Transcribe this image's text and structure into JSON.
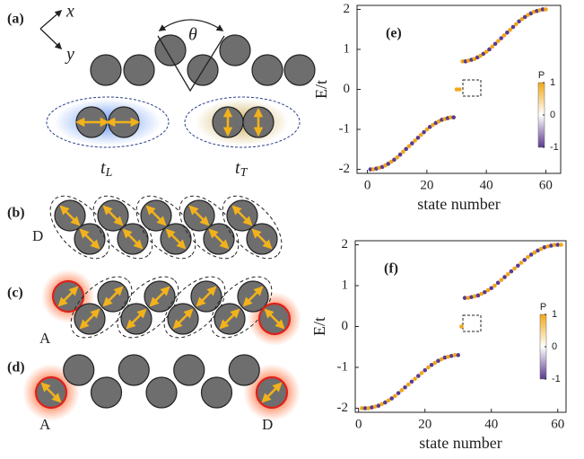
{
  "diagram": {
    "panel_labels": [
      "(a)",
      "(b)",
      "(c)",
      "(d)"
    ],
    "axis_x": "x",
    "axis_y": "y",
    "angle": "θ",
    "t_L": {
      "symbol": "t",
      "subscript": "L"
    },
    "t_T": {
      "symbol": "t",
      "subscript": "T"
    },
    "b_end": "D",
    "c_end": "A",
    "d_ends": [
      "A",
      "D"
    ]
  },
  "chart_data": [
    {
      "type": "scatter",
      "title": "(e)",
      "x_label": "state number",
      "y_label": "E/t",
      "x": [
        1,
        2,
        3,
        4,
        5,
        6,
        7,
        8,
        9,
        10,
        11,
        12,
        13,
        14,
        15,
        16,
        17,
        18,
        19,
        20,
        21,
        22,
        23,
        24,
        25,
        26,
        27,
        28,
        29,
        30,
        31,
        32,
        33,
        34,
        35,
        36,
        37,
        38,
        39,
        40,
        41,
        42,
        43,
        44,
        45,
        46,
        47,
        48,
        49,
        50,
        51,
        52,
        53,
        54,
        55,
        56,
        57,
        58,
        59,
        60
      ],
      "values": [
        -2,
        -2,
        -1.98,
        -1.96,
        -1.94,
        -1.9,
        -1.86,
        -1.81,
        -1.76,
        -1.7,
        -1.63,
        -1.56,
        -1.49,
        -1.42,
        -1.35,
        -1.28,
        -1.21,
        -1.14,
        -1.07,
        -1,
        -0.94,
        -0.89,
        -0.84,
        -0.8,
        -0.76,
        -0.74,
        -0.72,
        -0.7,
        -0.7,
        0,
        0,
        0.7,
        0.7,
        0.72,
        0.74,
        0.76,
        0.8,
        0.84,
        0.89,
        0.94,
        1,
        1.07,
        1.14,
        1.21,
        1.28,
        1.35,
        1.42,
        1.49,
        1.56,
        1.63,
        1.7,
        1.76,
        1.81,
        1.86,
        1.9,
        1.94,
        1.96,
        1.98,
        2,
        2
      ],
      "p": [
        -1,
        1,
        -1,
        1,
        -1,
        1,
        -1,
        1,
        -1,
        1,
        -1,
        1,
        -1,
        1,
        -1,
        1,
        -1,
        1,
        -1,
        1,
        -1,
        1,
        -1,
        1,
        -1,
        1,
        -1,
        1,
        -1,
        1,
        1,
        1,
        -1,
        1,
        -1,
        1,
        -1,
        1,
        -1,
        1,
        -1,
        1,
        -1,
        1,
        -1,
        1,
        -1,
        1,
        -1,
        1,
        -1,
        1,
        -1,
        1,
        -1,
        1,
        -1,
        1,
        -1,
        1
      ],
      "xlim": [
        -3.5,
        65
      ],
      "ylim": [
        -2.1,
        2.1
      ],
      "xticks": [
        0,
        20,
        40,
        60
      ],
      "yticks": [
        -2,
        -1,
        0,
        1,
        2
      ],
      "colorbar": {
        "label": "P",
        "lim": [
          -1,
          1
        ],
        "ticks": [
          -1,
          0,
          1
        ]
      }
    },
    {
      "type": "scatter",
      "title": "(f)",
      "x_label": "state number",
      "y_label": "E/t",
      "x": [
        1,
        2,
        3,
        4,
        5,
        6,
        7,
        8,
        9,
        10,
        11,
        12,
        13,
        14,
        15,
        16,
        17,
        18,
        19,
        20,
        21,
        22,
        23,
        24,
        25,
        26,
        27,
        28,
        29,
        30,
        31,
        32,
        33,
        34,
        35,
        36,
        37,
        38,
        39,
        40,
        41,
        42,
        43,
        44,
        45,
        46,
        47,
        48,
        49,
        50,
        51,
        52,
        53,
        54,
        55,
        56,
        57,
        58,
        59,
        60,
        61
      ],
      "values": [
        -2,
        -2,
        -2,
        -1.98,
        -1.96,
        -1.94,
        -1.9,
        -1.86,
        -1.81,
        -1.76,
        -1.7,
        -1.63,
        -1.56,
        -1.49,
        -1.42,
        -1.35,
        -1.28,
        -1.21,
        -1.14,
        -1.07,
        -1,
        -0.94,
        -0.89,
        -0.84,
        -0.8,
        -0.76,
        -0.74,
        -0.72,
        -0.7,
        -0.7,
        0,
        0.7,
        0.7,
        0.72,
        0.74,
        0.76,
        0.8,
        0.84,
        0.89,
        0.94,
        1,
        1.07,
        1.14,
        1.21,
        1.28,
        1.35,
        1.42,
        1.49,
        1.56,
        1.63,
        1.7,
        1.76,
        1.81,
        1.86,
        1.9,
        1.94,
        1.96,
        1.98,
        2,
        2,
        2
      ],
      "p": [
        1,
        -1,
        1,
        -1,
        1,
        -1,
        1,
        -1,
        1,
        -1,
        1,
        -1,
        1,
        -1,
        1,
        -1,
        1,
        -1,
        1,
        -1,
        1,
        -1,
        1,
        -1,
        1,
        -1,
        1,
        -1,
        1,
        -1,
        1,
        -1,
        1,
        -1,
        1,
        -1,
        1,
        -1,
        1,
        -1,
        1,
        -1,
        1,
        -1,
        1,
        -1,
        1,
        -1,
        1,
        -1,
        1,
        -1,
        1,
        -1,
        1,
        -1,
        1,
        -1,
        1,
        -1,
        1
      ],
      "xlim": [
        -1,
        62.5
      ],
      "ylim": [
        -2.1,
        2.1
      ],
      "xticks": [
        0,
        20,
        40,
        60
      ],
      "yticks": [
        -2,
        -1,
        0,
        1,
        2
      ],
      "colorbar": {
        "label": "P",
        "lim": [
          -1,
          1
        ],
        "ticks": [
          -1,
          0,
          1
        ]
      }
    }
  ]
}
